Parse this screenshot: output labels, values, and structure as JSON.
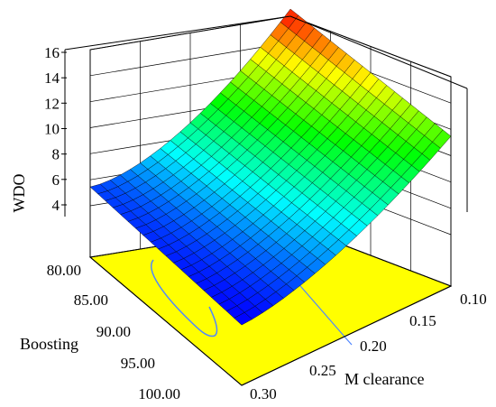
{
  "chart_data": {
    "type": "surface3d",
    "title": "",
    "xlabel": "M clearance",
    "ylabel": "Boosting",
    "zlabel": "WDO",
    "x_ticks": [
      "0.10",
      "0.15",
      "0.20",
      "0.25",
      "0.30"
    ],
    "y_ticks": [
      "80.00",
      "85.00",
      "90.00",
      "95.00",
      "100.00"
    ],
    "z_ticks": [
      "4",
      "6",
      "8",
      "10",
      "12",
      "14",
      "16"
    ],
    "xlim": [
      0.1,
      0.3
    ],
    "ylim": [
      80,
      100
    ],
    "zlim": [
      3,
      16
    ],
    "colormap": [
      "#0000ff",
      "#00ffff",
      "#00ff00",
      "#ffff00",
      "#ff0000"
    ],
    "floor_color": "#ffff00",
    "contour_color": "#4f86ff",
    "surface_corners": [
      {
        "x": 0.3,
        "y": 80,
        "z": 4.3
      },
      {
        "x": 0.3,
        "y": 100,
        "z": 3.5
      },
      {
        "x": 0.1,
        "y": 100,
        "z": 10.7
      },
      {
        "x": 0.1,
        "y": 80,
        "z": 16.0
      }
    ],
    "grid_resolution": 20
  }
}
